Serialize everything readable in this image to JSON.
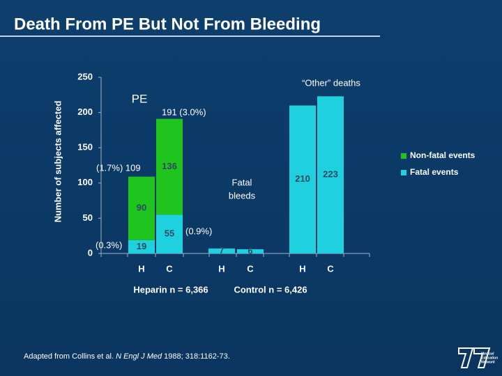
{
  "chart_data": {
    "type": "bar",
    "stacked": true,
    "title": "Death From PE But Not From Bleeding",
    "y_label": "Number of subjects affected",
    "categories": [
      "H",
      "C",
      "H",
      "C",
      "H",
      "C"
    ],
    "series": [
      {
        "name": "Non-fatal events",
        "color": "#1fc41f",
        "values": [
          90,
          136,
          null,
          null,
          null,
          null
        ]
      },
      {
        "name": "Fatal events",
        "color": "#1fd0df",
        "values": [
          19,
          55,
          7,
          6,
          210,
          223
        ]
      }
    ],
    "ylim": [
      0,
      250
    ],
    "yticks": [
      0,
      50,
      100,
      150,
      200,
      250
    ],
    "legend": "right",
    "group_labels": [
      "PE",
      "Fatal",
      "bleeds",
      "“Other” deaths"
    ],
    "annotations": [
      "(1.7%)  109",
      "191 (3.0%)",
      "(0.3%)",
      "(0.9%)"
    ],
    "group_totals": [
      "Heparin n = 6,366",
      "Control n = 6,426"
    ],
    "source": [
      "Adapted from Collins et al. ",
      "N Engl J Med",
      " 1988; 318:1162-73."
    ],
    "logo": [
      "Medical",
      "Education",
      "Network"
    ]
  }
}
